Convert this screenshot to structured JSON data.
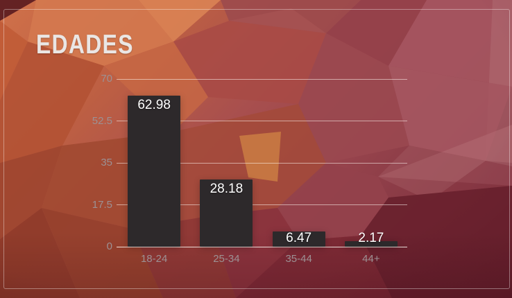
{
  "widget": {
    "title": "EDADES"
  },
  "colors": {
    "bar_fill": "#2d292b",
    "value_label": "#ffffff",
    "tick_label": "#9c9194",
    "gridline": "rgba(255,247,242,0.55)",
    "axis_line": "rgba(255,250,246,0.85)",
    "title_text": "#eae6e4",
    "frame_border": "rgba(255,255,255,0.38)"
  },
  "chart_data": {
    "type": "bar",
    "title": "EDADES",
    "categories": [
      "18-24",
      "25-34",
      "35-44",
      "44+"
    ],
    "values": [
      62.98,
      28.18,
      6.47,
      2.17
    ],
    "value_labels": [
      "62.98",
      "28.18",
      "6.47",
      "2.17"
    ],
    "y_ticks": [
      0,
      17.5,
      35,
      52.5,
      70
    ],
    "y_tick_labels": [
      "0",
      "17.5",
      "35",
      "52.5",
      "70"
    ],
    "ylim": [
      0,
      70
    ],
    "xlabel": "",
    "ylabel": "",
    "grid": true,
    "legend": false
  }
}
